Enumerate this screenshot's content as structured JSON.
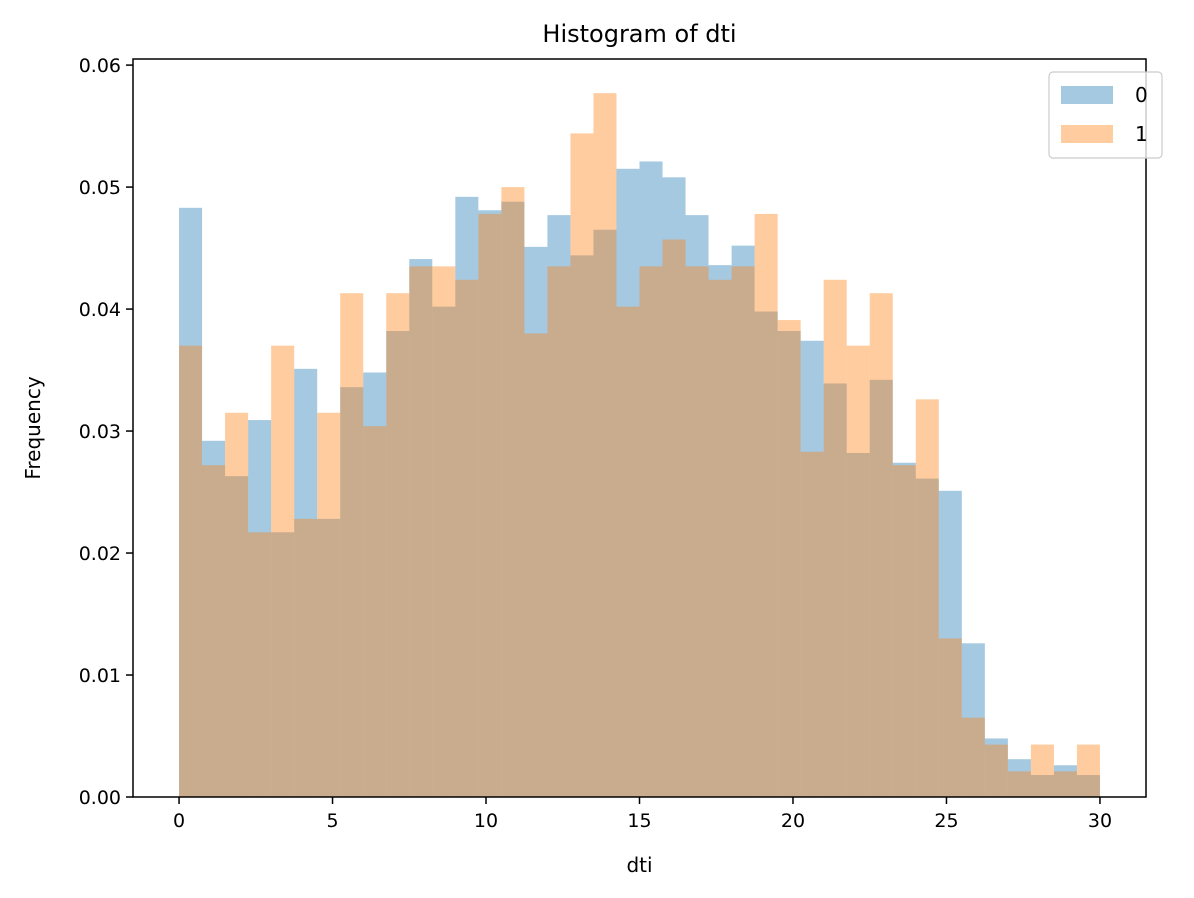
{
  "chart_data": {
    "type": "bar",
    "title": "Histogram of dti",
    "xlabel": "dti",
    "ylabel": "Frequency",
    "xlim": [
      -1.5,
      31.5
    ],
    "ylim": [
      0,
      0.0605
    ],
    "xticks": [
      0,
      5,
      10,
      15,
      20,
      25,
      30
    ],
    "xtick_labels": [
      "0",
      "5",
      "10",
      "15",
      "20",
      "25",
      "30"
    ],
    "yticks": [
      0,
      0.01,
      0.02,
      0.03,
      0.04,
      0.05,
      0.06
    ],
    "ytick_labels": [
      "0.00",
      "0.01",
      "0.02",
      "0.03",
      "0.04",
      "0.05",
      "0.06"
    ],
    "bin_start": 0,
    "bin_width": 0.75,
    "legend_position": "top-right",
    "grid": false,
    "series": [
      {
        "name": "0",
        "color": "#1f77b4",
        "opacity": 0.4,
        "values": [
          0.0483,
          0.0292,
          0.0263,
          0.0309,
          0.0217,
          0.0351,
          0.0228,
          0.0336,
          0.0348,
          0.0382,
          0.0441,
          0.0402,
          0.0492,
          0.0481,
          0.0488,
          0.0451,
          0.0477,
          0.0444,
          0.0465,
          0.0515,
          0.0521,
          0.0508,
          0.0477,
          0.0436,
          0.0452,
          0.0398,
          0.0382,
          0.0374,
          0.0339,
          0.0282,
          0.0342,
          0.0274,
          0.0261,
          0.0251,
          0.0126,
          0.0048,
          0.0031,
          0.0018,
          0.0026,
          0.0018
        ]
      },
      {
        "name": "1",
        "color": "#ff7f0e",
        "opacity": 0.4,
        "values": [
          0.037,
          0.0272,
          0.0315,
          0.0217,
          0.037,
          0.0228,
          0.0315,
          0.0413,
          0.0304,
          0.0413,
          0.0435,
          0.0435,
          0.0424,
          0.0478,
          0.05,
          0.038,
          0.0435,
          0.0544,
          0.0577,
          0.0402,
          0.0435,
          0.0457,
          0.0435,
          0.0424,
          0.0435,
          0.0478,
          0.0391,
          0.0283,
          0.0424,
          0.037,
          0.0413,
          0.0272,
          0.0326,
          0.013,
          0.0065,
          0.0043,
          0.0021,
          0.0043,
          0.0021,
          0.0043
        ]
      }
    ]
  }
}
